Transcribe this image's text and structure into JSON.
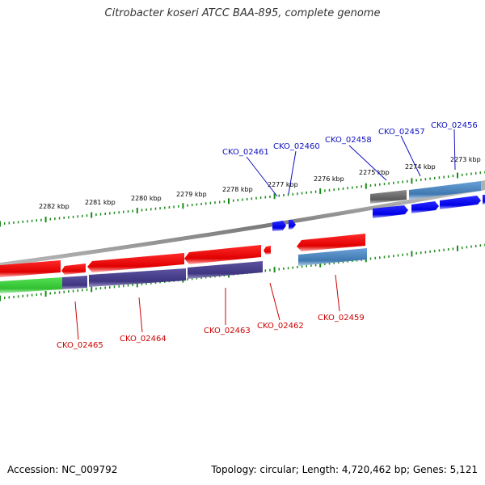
{
  "title": "Citrobacter koseri ATCC BAA-895, complete genome",
  "accession": "Accession: NC_009792",
  "stats": "Topology: circular; Length: 4,720,462 bp; Genes: 5,121",
  "kbp_labels": [
    "2282 kbp",
    "2281 kbp",
    "2280 kbp",
    "2279 kbp",
    "2278 kbp",
    "2277 kbp",
    "2276 kbp",
    "2275 kbp",
    "2274 kbp",
    "2273 kbp"
  ],
  "top_genes": [
    "CKO_02461",
    "CKO_02460",
    "CKO_02458",
    "CKO_02457",
    "CKO_02456"
  ],
  "bottom_genes": [
    "CKO_02465",
    "CKO_02464",
    "CKO_02463",
    "CKO_02462",
    "CKO_02459"
  ],
  "colors": {
    "backbone": "#8c8c8c",
    "tick": "#1a8a1a",
    "cds_forward": "#0000e6",
    "cds_reverse": "#e00000",
    "feature_forward": "#4a86c0",
    "feature_gray": "#6e6e6e",
    "feature_green": "#3ccc3c",
    "feature_purple": "#4a3f8c",
    "label_forward": "#1010c0",
    "label_reverse": "#cc0000"
  }
}
